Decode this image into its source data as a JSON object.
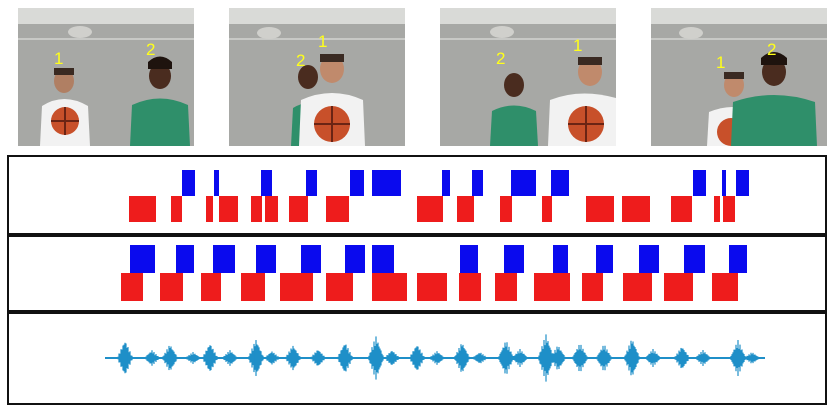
{
  "frames": [
    {
      "id": "frame-1",
      "labels": [
        "1",
        "2"
      ]
    },
    {
      "id": "frame-2",
      "labels": [
        "2",
        "1"
      ]
    },
    {
      "id": "frame-3",
      "labels": [
        "2",
        "1"
      ]
    },
    {
      "id": "frame-4",
      "labels": [
        "1",
        "2"
      ]
    }
  ],
  "colors": {
    "speaker_1": "#ee1c1c",
    "speaker_2": "#0a0aee",
    "waveform": "#1f8fc8",
    "label": "#ffff1a",
    "shirt_green": "#2f8f6a",
    "shirt_white": "#f2f2f2",
    "ball": "#c8502a"
  },
  "panels": {
    "top_segments": {
      "speaker_2_segments": [
        [
          182,
          195
        ],
        [
          214,
          219
        ],
        [
          261,
          272
        ],
        [
          306,
          317
        ],
        [
          350,
          364
        ],
        [
          372,
          401
        ],
        [
          442,
          450
        ],
        [
          472,
          483
        ],
        [
          511,
          536
        ],
        [
          551,
          569
        ],
        [
          693,
          706
        ],
        [
          722,
          726
        ],
        [
          736,
          749
        ]
      ],
      "speaker_1_segments": [
        [
          129,
          156
        ],
        [
          171,
          182
        ],
        [
          206,
          213
        ],
        [
          219,
          238
        ],
        [
          251,
          262
        ],
        [
          265,
          278
        ],
        [
          289,
          308
        ],
        [
          326,
          349
        ],
        [
          417,
          443
        ],
        [
          457,
          474
        ],
        [
          500,
          512
        ],
        [
          542,
          552
        ],
        [
          586,
          614
        ],
        [
          622,
          650
        ],
        [
          671,
          692
        ],
        [
          714,
          720
        ],
        [
          723,
          735
        ]
      ]
    },
    "bottom_segments": {
      "speaker_2_segments": [
        [
          130,
          155
        ],
        [
          176,
          194
        ],
        [
          213,
          235
        ],
        [
          256,
          276
        ],
        [
          301,
          321
        ],
        [
          345,
          365
        ],
        [
          372,
          394
        ],
        [
          460,
          478
        ],
        [
          504,
          524
        ],
        [
          553,
          568
        ],
        [
          596,
          613
        ],
        [
          639,
          659
        ],
        [
          684,
          705
        ],
        [
          729,
          747
        ]
      ],
      "speaker_1_segments": [
        [
          121,
          143
        ],
        [
          160,
          183
        ],
        [
          201,
          221
        ],
        [
          241,
          265
        ],
        [
          280,
          313
        ],
        [
          326,
          353
        ],
        [
          372,
          407
        ],
        [
          417,
          447
        ],
        [
          459,
          481
        ],
        [
          495,
          517
        ],
        [
          534,
          570
        ],
        [
          582,
          603
        ],
        [
          623,
          652
        ],
        [
          664,
          693
        ],
        [
          712,
          738
        ]
      ]
    },
    "waveform": {
      "bursts": [
        [
          125,
          18
        ],
        [
          152,
          8
        ],
        [
          170,
          14
        ],
        [
          193,
          6
        ],
        [
          210,
          15
        ],
        [
          230,
          8
        ],
        [
          256,
          19
        ],
        [
          272,
          7
        ],
        [
          293,
          13
        ],
        [
          318,
          9
        ],
        [
          345,
          16
        ],
        [
          376,
          22
        ],
        [
          392,
          8
        ],
        [
          417,
          14
        ],
        [
          437,
          7
        ],
        [
          462,
          16
        ],
        [
          480,
          6
        ],
        [
          506,
          18
        ],
        [
          520,
          9
        ],
        [
          546,
          24
        ],
        [
          558,
          13
        ],
        [
          580,
          15
        ],
        [
          604,
          14
        ],
        [
          632,
          20
        ],
        [
          653,
          9
        ],
        [
          682,
          12
        ],
        [
          703,
          8
        ],
        [
          738,
          18
        ],
        [
          752,
          6
        ]
      ]
    }
  }
}
